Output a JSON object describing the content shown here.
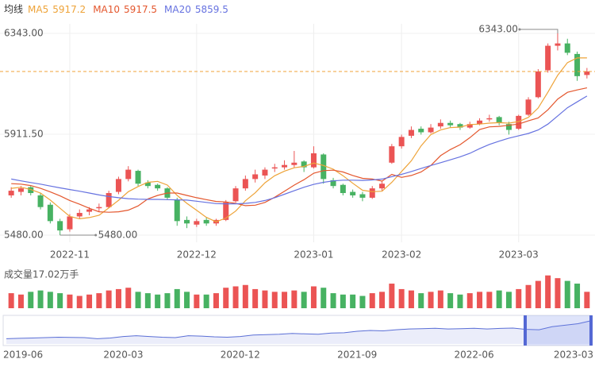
{
  "chart_data": [
    {
      "type": "candlestick",
      "legend_title": "均线",
      "up_color": "#eb5454",
      "down_color": "#47b262",
      "grid": true,
      "categories": [
        null,
        null,
        null,
        null,
        null,
        null,
        "2022-11",
        null,
        null,
        null,
        null,
        null,
        null,
        null,
        null,
        null,
        null,
        null,
        null,
        "2022-12",
        null,
        null,
        null,
        null,
        null,
        null,
        null,
        null,
        null,
        null,
        null,
        "2023-01",
        null,
        null,
        null,
        null,
        null,
        null,
        null,
        null,
        "2023-02",
        null,
        null,
        null,
        null,
        null,
        null,
        null,
        null,
        null,
        null,
        null,
        "2023-03",
        null,
        null,
        null,
        null,
        null,
        null,
        null
      ],
      "candles": [
        [
          5650,
          5685,
          5640,
          5670
        ],
        [
          5665,
          5690,
          5650,
          5680
        ],
        [
          5685,
          5690,
          5650,
          5660
        ],
        [
          5650,
          5660,
          5590,
          5600
        ],
        [
          5610,
          5620,
          5530,
          5540
        ],
        [
          5540,
          5550,
          5480,
          5500
        ],
        [
          5505,
          5570,
          5495,
          5560
        ],
        [
          5560,
          5590,
          5550,
          5575
        ],
        [
          5580,
          5600,
          5565,
          5590
        ],
        [
          5595,
          5615,
          5580,
          5600
        ],
        [
          5600,
          5670,
          5595,
          5660
        ],
        [
          5665,
          5730,
          5655,
          5720
        ],
        [
          5720,
          5775,
          5710,
          5760
        ],
        [
          5755,
          5760,
          5690,
          5700
        ],
        [
          5705,
          5715,
          5680,
          5690
        ],
        [
          5695,
          5700,
          5670,
          5680
        ],
        [
          5680,
          5685,
          5630,
          5640
        ],
        [
          5630,
          5640,
          5520,
          5540
        ],
        [
          5545,
          5560,
          5510,
          5530
        ],
        [
          5525,
          5550,
          5515,
          5540
        ],
        [
          5545,
          5555,
          5520,
          5530
        ],
        [
          5530,
          5550,
          5520,
          5545
        ],
        [
          5545,
          5630,
          5540,
          5620
        ],
        [
          5625,
          5690,
          5620,
          5680
        ],
        [
          5680,
          5735,
          5670,
          5720
        ],
        [
          5720,
          5760,
          5705,
          5740
        ],
        [
          5735,
          5770,
          5720,
          5760
        ],
        [
          5765,
          5785,
          5750,
          5770
        ],
        [
          5770,
          5800,
          5760,
          5780
        ],
        [
          5780,
          5840,
          5770,
          5790
        ],
        [
          5795,
          5800,
          5750,
          5770
        ],
        [
          5770,
          5860,
          5765,
          5830
        ],
        [
          5825,
          5830,
          5700,
          5720
        ],
        [
          5715,
          5725,
          5680,
          5690
        ],
        [
          5695,
          5700,
          5650,
          5660
        ],
        [
          5665,
          5675,
          5640,
          5650
        ],
        [
          5655,
          5665,
          5625,
          5640
        ],
        [
          5640,
          5690,
          5635,
          5680
        ],
        [
          5680,
          5710,
          5670,
          5700
        ],
        [
          5790,
          5870,
          5785,
          5860
        ],
        [
          5860,
          5910,
          5850,
          5900
        ],
        [
          5905,
          5945,
          5895,
          5930
        ],
        [
          5935,
          5945,
          5910,
          5920
        ],
        [
          5920,
          5955,
          5915,
          5940
        ],
        [
          5945,
          5975,
          5935,
          5960
        ],
        [
          5960,
          5970,
          5940,
          5950
        ],
        [
          5955,
          5960,
          5930,
          5940
        ],
        [
          5940,
          5965,
          5935,
          5955
        ],
        [
          5955,
          5980,
          5950,
          5970
        ],
        [
          5975,
          5995,
          5965,
          5980
        ],
        [
          5985,
          5990,
          5950,
          5960
        ],
        [
          5955,
          5965,
          5910,
          5930
        ],
        [
          5935,
          5995,
          5930,
          5990
        ],
        [
          5995,
          6070,
          5990,
          6060
        ],
        [
          6070,
          6190,
          6065,
          6180
        ],
        [
          6185,
          6300,
          6175,
          6290
        ],
        [
          6290,
          6343,
          6270,
          6300
        ],
        [
          6300,
          6320,
          6250,
          6260
        ],
        [
          6255,
          6265,
          6140,
          6160
        ],
        [
          6165,
          6195,
          6150,
          6180
        ]
      ],
      "series": [
        {
          "name": "MA5",
          "legend_value": 5917.2,
          "color": "#eea338",
          "values": [
            5680,
            5685,
            5675,
            5660,
            5630,
            5595,
            5560,
            5550,
            5555,
            5565,
            5597,
            5629,
            5666,
            5688,
            5706,
            5710,
            5694,
            5650,
            5616,
            5586,
            5556,
            5537,
            5553,
            5583,
            5627,
            5661,
            5704,
            5734,
            5754,
            5768,
            5774,
            5788,
            5778,
            5762,
            5734,
            5702,
            5672,
            5666,
            5668,
            5706,
            5752,
            5798,
            5862,
            5910,
            5930,
            5940,
            5942,
            5953,
            5955,
            5959,
            5961,
            5959,
            5966,
            5984,
            6024,
            6092,
            6164,
            6218,
            6238,
            6238
          ]
        },
        {
          "name": "MA10",
          "legend_value": 5917.5,
          "color": "#e4572e",
          "values": [
            5700,
            5698,
            5692,
            5680,
            5665,
            5648,
            5628,
            5612,
            5595,
            5580,
            5578,
            5580,
            5587,
            5605,
            5635,
            5650,
            5660,
            5660,
            5650,
            5640,
            5632,
            5624,
            5622,
            5616,
            5606,
            5608,
            5620,
            5642,
            5668,
            5694,
            5717,
            5745,
            5756,
            5758,
            5750,
            5735,
            5723,
            5720,
            5711,
            5740,
            5727,
            5735,
            5750,
            5778,
            5820,
            5846,
            5867,
            5897,
            5932,
            5943,
            5945,
            5950,
            5955,
            5969,
            5981,
            6016,
            6062,
            6091,
            6101,
            6110
          ]
        },
        {
          "name": "MA20",
          "legend_value": 5859.5,
          "color": "#6672e0",
          "values": [
            5720,
            5712,
            5705,
            5698,
            5690,
            5682,
            5675,
            5668,
            5660,
            5652,
            5645,
            5640,
            5636,
            5634,
            5633,
            5633,
            5632,
            5631,
            5630,
            5625,
            5620,
            5615,
            5614,
            5614,
            5616,
            5620,
            5628,
            5640,
            5655,
            5670,
            5685,
            5697,
            5706,
            5712,
            5715,
            5715,
            5714,
            5716,
            5720,
            5730,
            5740,
            5752,
            5765,
            5778,
            5790,
            5802,
            5815,
            5830,
            5850,
            5868,
            5882,
            5895,
            5905,
            5915,
            5930,
            5955,
            5990,
            6025,
            6050,
            6075
          ]
        }
      ],
      "ylim": [
        5480,
        6343
      ],
      "yticks": [
        {
          "value": 6343,
          "label": "6343.00"
        },
        {
          "value": 5911.5,
          "label": "5911.50"
        },
        {
          "value": 5480,
          "label": "5480.00"
        }
      ],
      "annotations": [
        {
          "value": 6343,
          "label": "6343.00"
        },
        {
          "value": 5480,
          "label": "5480.00"
        }
      ]
    },
    {
      "type": "bar",
      "title": "成交量17.02万手",
      "ylim": [
        0,
        25
      ],
      "values": [
        11,
        10,
        12,
        13,
        12,
        11,
        10,
        9,
        10,
        11,
        13,
        14,
        15,
        12,
        11,
        10,
        11,
        14,
        12,
        10,
        10,
        11,
        15,
        16,
        17,
        14,
        13,
        12,
        12,
        13,
        12,
        16,
        15,
        11,
        10,
        10,
        9,
        11,
        12,
        18,
        14,
        13,
        11,
        12,
        13,
        11,
        10,
        11,
        12,
        12,
        13,
        12,
        14,
        17,
        20,
        24,
        22,
        20,
        18,
        12
      ]
    },
    {
      "type": "area",
      "color": "#5b6fd6",
      "ylim": [
        3000,
        6500
      ],
      "categories": [
        "2019-06",
        null,
        null,
        null,
        null,
        null,
        null,
        null,
        null,
        "2020-03",
        null,
        null,
        null,
        null,
        null,
        null,
        null,
        null,
        "2020-12",
        null,
        null,
        null,
        null,
        null,
        null,
        null,
        null,
        "2021-09",
        null,
        null,
        null,
        null,
        null,
        null,
        null,
        null,
        "2022-06",
        null,
        null,
        null,
        null,
        null,
        null,
        null,
        null,
        "2023-03"
      ],
      "values": [
        3700,
        3750,
        3800,
        3850,
        3900,
        3880,
        3850,
        3700,
        3800,
        4000,
        4100,
        4000,
        3900,
        3850,
        4100,
        4050,
        3950,
        3900,
        4000,
        4200,
        4250,
        4300,
        4400,
        4350,
        4300,
        4450,
        4500,
        4700,
        4800,
        4750,
        4900,
        5000,
        5050,
        5100,
        5000,
        5050,
        5100,
        5000,
        5080,
        5120,
        4950,
        4900,
        5300,
        5500,
        5700,
        6100
      ]
    }
  ]
}
